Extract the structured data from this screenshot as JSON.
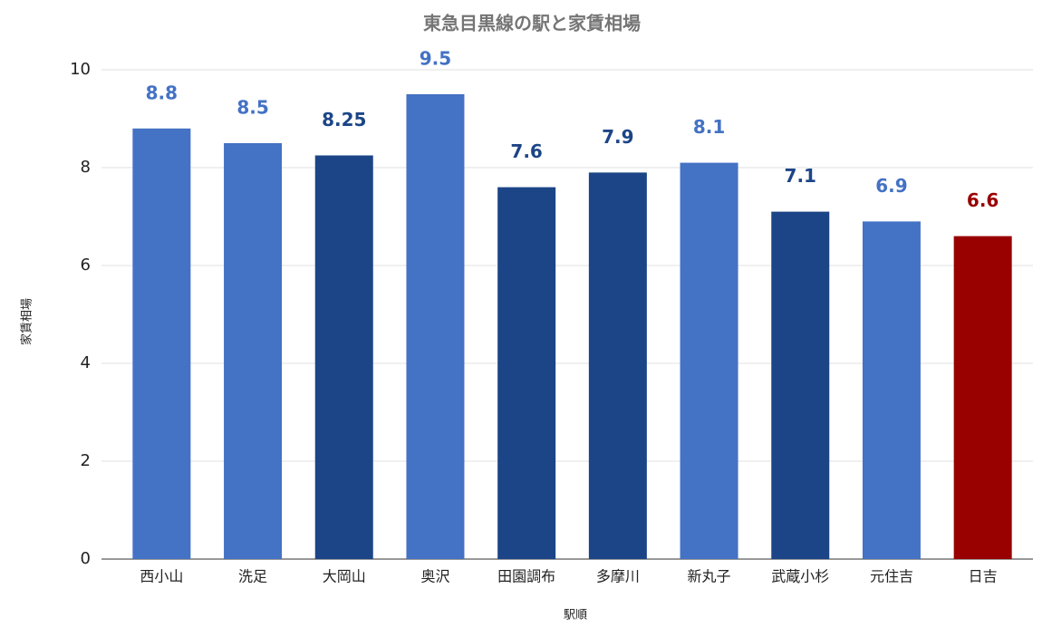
{
  "chart_data": {
    "type": "bar",
    "title": "東急目黒線の駅と家賃相場",
    "x_label": "駅順",
    "y_label": "家賃相場",
    "categories": [
      "西小山",
      "洗足",
      "大岡山",
      "奥沢",
      "田園調布",
      "多摩川",
      "新丸子",
      "武蔵小杉",
      "元住吉",
      "日吉"
    ],
    "values": [
      8.8,
      8.5,
      8.25,
      9.5,
      7.6,
      7.9,
      8.1,
      7.1,
      6.9,
      6.6
    ],
    "colors": [
      "#4472c4",
      "#4472c4",
      "#1c4587",
      "#4472c4",
      "#1c4587",
      "#1c4587",
      "#4472c4",
      "#1c4587",
      "#4472c4",
      "#990000"
    ],
    "ylim": [
      0,
      10
    ],
    "yticks": [
      0,
      2,
      4,
      6,
      8,
      10
    ],
    "grid": true
  }
}
